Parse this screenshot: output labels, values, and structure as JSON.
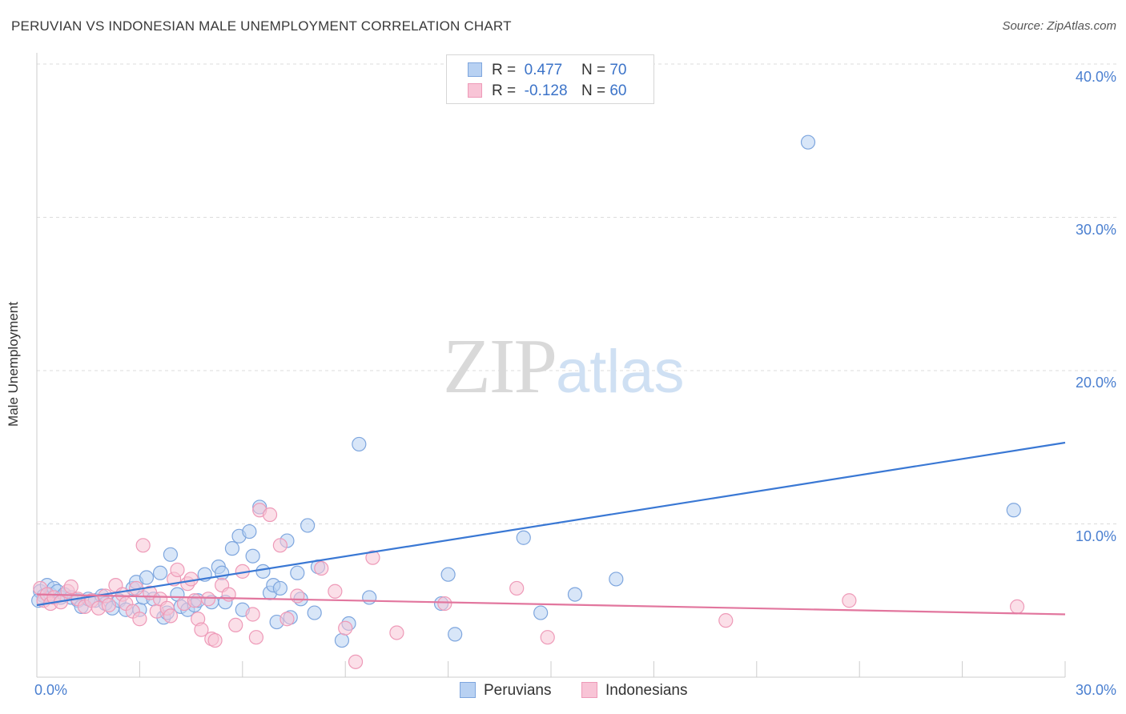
{
  "title": "PERUVIAN VS INDONESIAN MALE UNEMPLOYMENT CORRELATION CHART",
  "source": "Source: ZipAtlas.com",
  "watermark": {
    "zip": "ZIP",
    "atlas": "atlas"
  },
  "legend": {
    "r_label": "R =",
    "n_label": "N =",
    "series": [
      {
        "r": "0.477",
        "n": "70"
      },
      {
        "r": "-0.128",
        "n": "60"
      }
    ]
  },
  "bottom_legend": [
    "Peruvians",
    "Indonesians"
  ],
  "colors": {
    "blue_fill": "#b8d1f2",
    "blue_stroke": "#7ea6de",
    "blue_line": "#3a78d4",
    "pink_fill": "#f8c4d6",
    "pink_stroke": "#ee9ab8",
    "pink_line": "#e2769e",
    "tick_text": "#4a7fd0"
  },
  "chart_data": {
    "type": "scatter",
    "title": "PERUVIAN VS INDONESIAN MALE UNEMPLOYMENT CORRELATION CHART",
    "xlabel": "",
    "ylabel": "Male Unemployment",
    "xlim": [
      0,
      30
    ],
    "ylim": [
      0,
      40
    ],
    "x_tick_labels": [
      "0.0%",
      "30.0%"
    ],
    "y_ticks": [
      10,
      20,
      30,
      40
    ],
    "y_tick_labels": [
      "10.0%",
      "20.0%",
      "30.0%",
      "40.0%"
    ],
    "grid": true,
    "series": [
      {
        "name": "Peruvians",
        "r": 0.477,
        "n": 70,
        "trend": {
          "x": [
            0,
            30
          ],
          "y": [
            4.7,
            15.3
          ]
        },
        "points": [
          [
            0.1,
            5.6
          ],
          [
            0.2,
            5.3
          ],
          [
            0.3,
            6.0
          ],
          [
            0.4,
            5.4
          ],
          [
            0.5,
            5.8
          ],
          [
            0.6,
            5.6
          ],
          [
            0.7,
            5.2
          ],
          [
            0.8,
            5.4
          ],
          [
            1.0,
            5.2
          ],
          [
            1.2,
            5.0
          ],
          [
            1.3,
            4.6
          ],
          [
            1.5,
            5.1
          ],
          [
            1.7,
            5.0
          ],
          [
            1.9,
            5.3
          ],
          [
            2.0,
            4.8
          ],
          [
            2.2,
            4.5
          ],
          [
            2.4,
            5.0
          ],
          [
            2.6,
            4.4
          ],
          [
            2.8,
            5.8
          ],
          [
            2.9,
            6.2
          ],
          [
            3.0,
            4.4
          ],
          [
            3.1,
            5.2
          ],
          [
            3.2,
            6.5
          ],
          [
            3.4,
            5.1
          ],
          [
            3.6,
            6.8
          ],
          [
            3.7,
            3.9
          ],
          [
            3.8,
            4.2
          ],
          [
            3.9,
            8.0
          ],
          [
            4.1,
            5.4
          ],
          [
            4.2,
            4.6
          ],
          [
            4.4,
            4.4
          ],
          [
            4.6,
            4.7
          ],
          [
            4.7,
            5.0
          ],
          [
            4.9,
            6.7
          ],
          [
            5.1,
            4.9
          ],
          [
            5.3,
            7.2
          ],
          [
            5.4,
            6.8
          ],
          [
            5.5,
            4.9
          ],
          [
            5.7,
            8.4
          ],
          [
            5.9,
            9.2
          ],
          [
            6.0,
            4.4
          ],
          [
            6.2,
            9.5
          ],
          [
            6.3,
            7.9
          ],
          [
            6.5,
            11.1
          ],
          [
            6.6,
            6.9
          ],
          [
            6.8,
            5.5
          ],
          [
            6.9,
            6.0
          ],
          [
            7.0,
            3.6
          ],
          [
            7.1,
            5.8
          ],
          [
            7.3,
            8.9
          ],
          [
            7.4,
            3.9
          ],
          [
            7.6,
            6.8
          ],
          [
            7.7,
            5.1
          ],
          [
            7.9,
            9.9
          ],
          [
            8.1,
            4.2
          ],
          [
            8.2,
            7.2
          ],
          [
            8.9,
            2.4
          ],
          [
            9.1,
            3.5
          ],
          [
            9.4,
            15.2
          ],
          [
            9.7,
            5.2
          ],
          [
            11.8,
            4.8
          ],
          [
            12.0,
            6.7
          ],
          [
            12.2,
            2.8
          ],
          [
            14.2,
            9.1
          ],
          [
            14.7,
            4.2
          ],
          [
            15.7,
            5.4
          ],
          [
            16.9,
            6.4
          ],
          [
            22.5,
            34.9
          ],
          [
            28.5,
            10.9
          ],
          [
            0.05,
            5.0
          ]
        ]
      },
      {
        "name": "Indonesians",
        "r": -0.128,
        "n": 60,
        "trend": {
          "x": [
            0,
            30
          ],
          "y": [
            5.4,
            4.1
          ]
        },
        "points": [
          [
            0.1,
            5.8
          ],
          [
            0.2,
            5.0
          ],
          [
            0.3,
            5.4
          ],
          [
            0.4,
            4.8
          ],
          [
            0.5,
            5.2
          ],
          [
            0.7,
            4.9
          ],
          [
            0.9,
            5.6
          ],
          [
            1.0,
            5.9
          ],
          [
            1.2,
            5.1
          ],
          [
            1.4,
            4.6
          ],
          [
            1.6,
            5.0
          ],
          [
            1.8,
            4.5
          ],
          [
            2.0,
            5.3
          ],
          [
            2.1,
            4.7
          ],
          [
            2.3,
            6.0
          ],
          [
            2.5,
            5.4
          ],
          [
            2.6,
            4.8
          ],
          [
            2.8,
            4.3
          ],
          [
            2.9,
            5.8
          ],
          [
            3.0,
            3.8
          ],
          [
            3.1,
            8.6
          ],
          [
            3.3,
            5.5
          ],
          [
            3.5,
            4.3
          ],
          [
            3.6,
            5.1
          ],
          [
            3.8,
            4.5
          ],
          [
            3.9,
            4.0
          ],
          [
            4.0,
            6.4
          ],
          [
            4.1,
            7.0
          ],
          [
            4.3,
            4.8
          ],
          [
            4.4,
            6.1
          ],
          [
            4.5,
            6.4
          ],
          [
            4.6,
            5.0
          ],
          [
            4.7,
            3.8
          ],
          [
            4.8,
            3.1
          ],
          [
            5.0,
            5.1
          ],
          [
            5.1,
            2.5
          ],
          [
            5.2,
            2.4
          ],
          [
            5.4,
            6.0
          ],
          [
            5.6,
            5.4
          ],
          [
            5.8,
            3.4
          ],
          [
            6.0,
            6.9
          ],
          [
            6.3,
            4.1
          ],
          [
            6.4,
            2.6
          ],
          [
            6.5,
            10.9
          ],
          [
            6.8,
            10.6
          ],
          [
            7.1,
            8.6
          ],
          [
            7.3,
            3.8
          ],
          [
            7.6,
            5.3
          ],
          [
            8.3,
            7.1
          ],
          [
            8.7,
            5.6
          ],
          [
            9.0,
            3.2
          ],
          [
            9.3,
            1.0
          ],
          [
            9.8,
            7.8
          ],
          [
            10.5,
            2.9
          ],
          [
            11.9,
            4.8
          ],
          [
            14.0,
            5.8
          ],
          [
            14.9,
            2.6
          ],
          [
            20.1,
            3.7
          ],
          [
            23.7,
            5.0
          ],
          [
            28.6,
            4.6
          ]
        ]
      }
    ]
  }
}
